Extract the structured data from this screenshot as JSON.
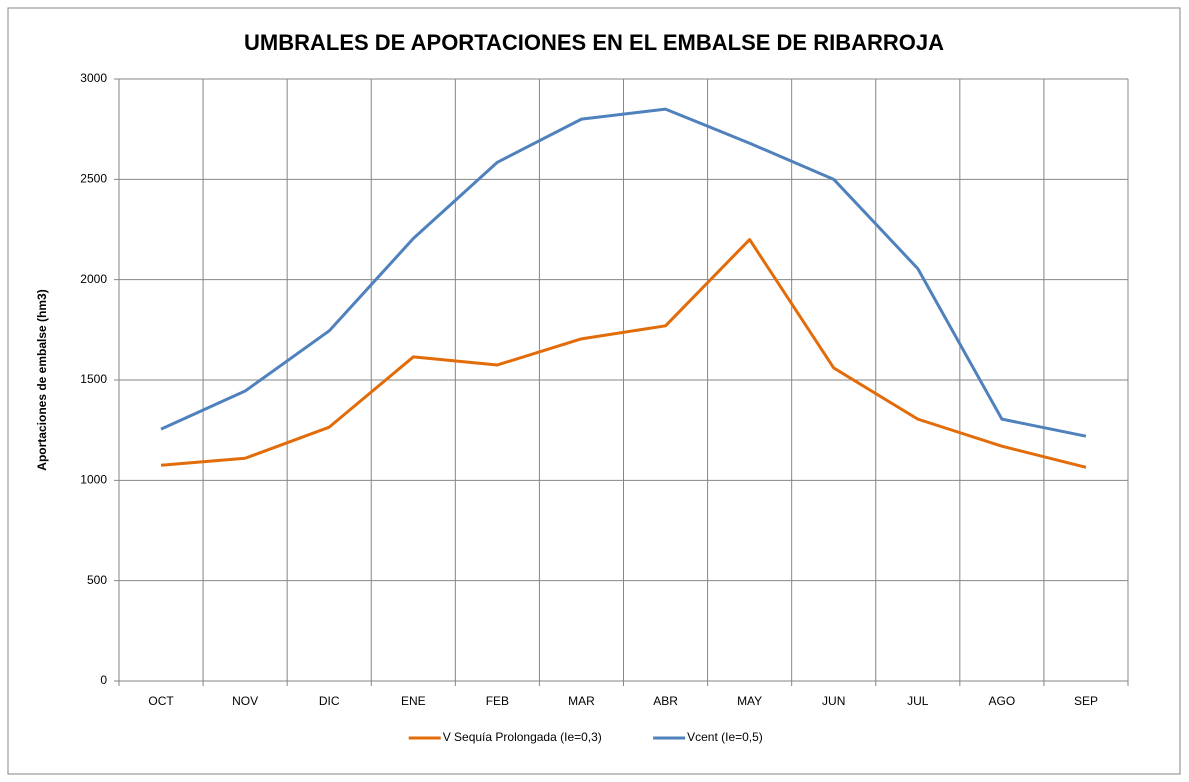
{
  "chart_data": {
    "type": "line",
    "title": "UMBRALES DE APORTACIONES EN EL EMBALSE DE RIBARROJA",
    "y_label": "Aportaciones de embalse  (hm3)",
    "categories": [
      "OCT",
      "NOV",
      "DIC",
      "ENE",
      "FEB",
      "MAR",
      "ABR",
      "MAY",
      "JUN",
      "JUL",
      "AGO",
      "SEP"
    ],
    "series": [
      {
        "name": "V Sequía Prolongada (Ie=0,3)",
        "color": "#e36c0a",
        "values": [
          1075,
          1110,
          1265,
          1615,
          1575,
          1705,
          1770,
          2200,
          1560,
          1305,
          1170,
          1065
        ]
      },
      {
        "name": "Vcent (Ie=0,5)",
        "color": "#4f81bd",
        "values": [
          1255,
          1445,
          1745,
          2205,
          2585,
          2800,
          2850,
          2680,
          2500,
          2055,
          1305,
          1220
        ]
      }
    ],
    "ylim": [
      0,
      3000
    ],
    "yticks": [
      0,
      500,
      1000,
      1500,
      2000,
      2500,
      3000
    ],
    "grid": true,
    "legend": "bottom"
  }
}
